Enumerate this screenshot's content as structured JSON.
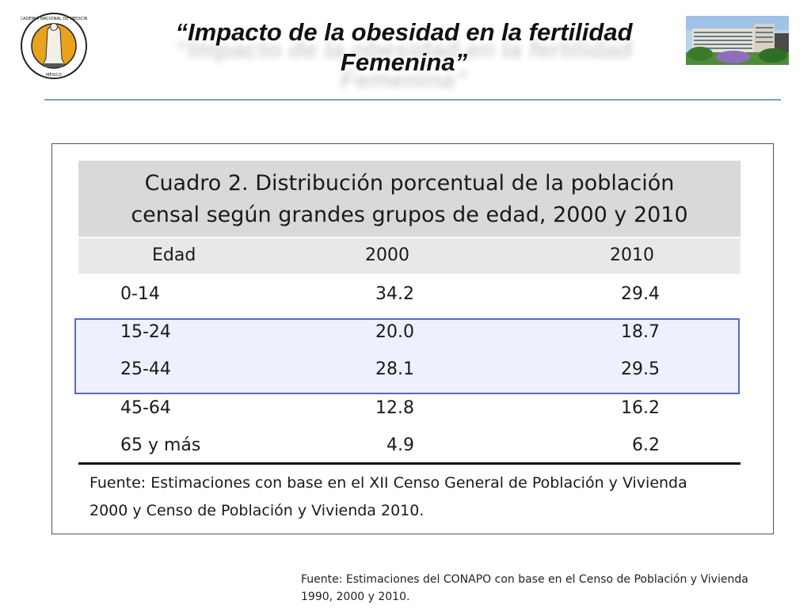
{
  "header": {
    "logo_text": "ACADEMIA NACIONAL DE MEDICINA",
    "logo_subtext": "MÉXICO",
    "title_line1": "“Impacto de la obesidad en la fertilidad",
    "title_line2": "Femenina”"
  },
  "table": {
    "caption_line1": "Cuadro 2. Distribución porcentual de la población",
    "caption_line2": "censal según grandes grupos de edad, 2000 y 2010",
    "columns": [
      "Edad",
      "2000",
      "2010"
    ],
    "rows": [
      {
        "age": "0-14",
        "y2000": "34.2",
        "y2010": "29.4"
      },
      {
        "age": "15-24",
        "y2000": "20.0",
        "y2010": "18.7"
      },
      {
        "age": "25-44",
        "y2000": "28.1",
        "y2010": "29.5"
      },
      {
        "age": "45-64",
        "y2000": "12.8",
        "y2010": "16.2"
      },
      {
        "age": "65 y más",
        "y2000": "4.9",
        "y2010": "6.2"
      }
    ],
    "source_line1": "Fuente: Estimaciones con base en el XII Censo General de Población y Vivienda",
    "source_line2": "2000 y Censo de Población y Vivienda 2010."
  },
  "footnote": {
    "line1": "Fuente: Estimaciones del CONAPO con base en el Censo de Población y Vivienda",
    "line2": "1990, 2000 y 2010."
  },
  "colors": {
    "highlight_border": "#5b6ac0",
    "highlight_fill": "#eef0fd",
    "rule": "#7ba0c8",
    "caption_bg": "#d9d9d9"
  }
}
